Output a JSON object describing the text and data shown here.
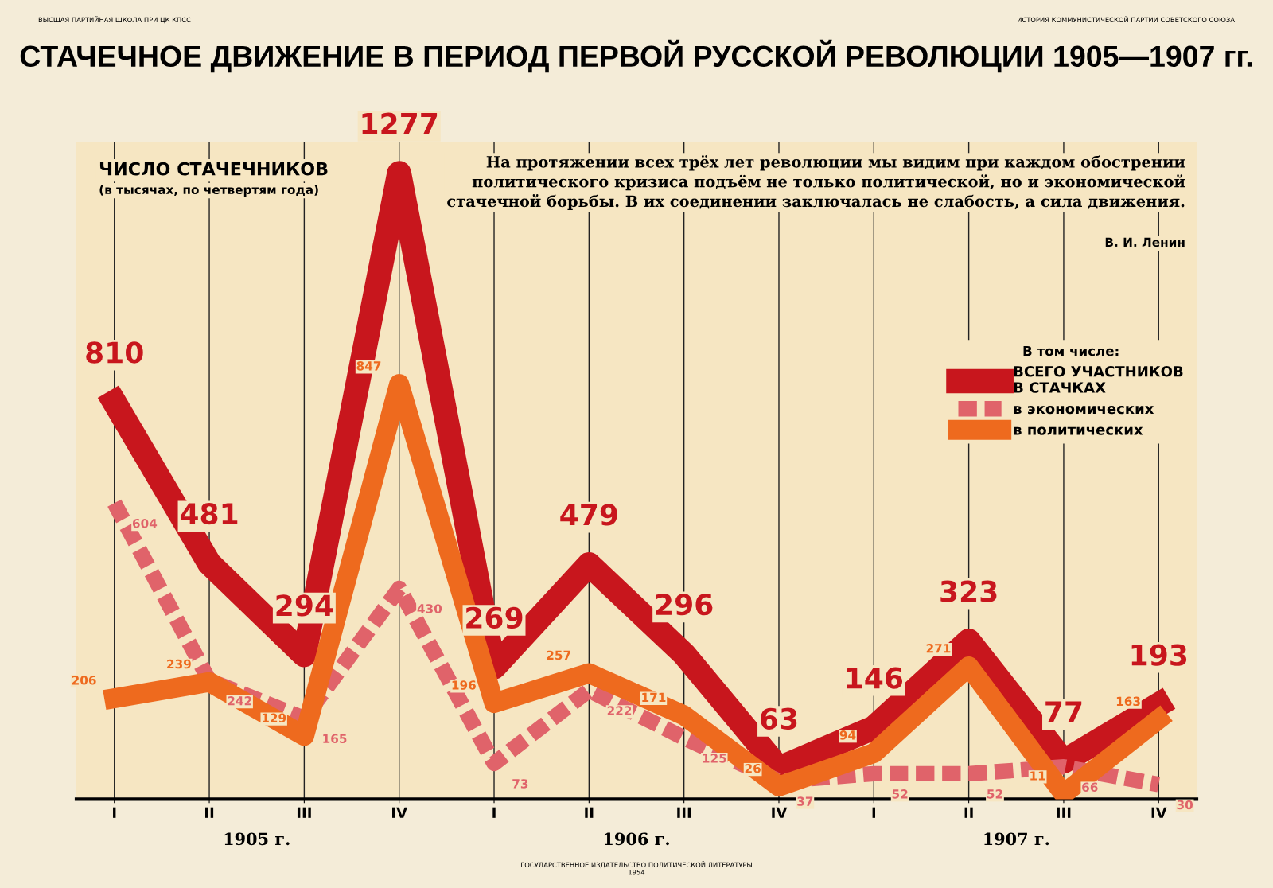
{
  "chart_data": {
    "type": "line",
    "title": "СТАЧЕЧНОЕ ДВИЖЕНИЕ В ПЕРИОД ПЕРВОЙ РУССКОЙ РЕВОЛЮЦИИ 1905—1907 гг.",
    "ylabel": "ЧИСЛО СТАЧЕЧНИКОВ",
    "subtitle": "(в тысячах, по четвертям года)",
    "categories": [
      "I",
      "II",
      "III",
      "IV",
      "I",
      "II",
      "III",
      "IV",
      "I",
      "II",
      "III",
      "IV"
    ],
    "series": [
      {
        "name": "ВСЕГО УЧАСТНИКОВ\nВ СТАЧКАХ",
        "color": "#c8161d",
        "line_style": "solid",
        "values": [
          810,
          481,
          294,
          1277,
          269,
          479,
          296,
          63,
          146,
          323,
          77,
          193
        ]
      },
      {
        "name": "в экономических",
        "color": "#e0636a",
        "line_style": "dashed",
        "values": [
          604,
          242,
          165,
          430,
          73,
          222,
          125,
          37,
          52,
          52,
          66,
          30
        ]
      },
      {
        "name": "в политических",
        "color": "#ee6a1e",
        "line_style": "solid",
        "values": [
          206,
          239,
          129,
          847,
          196,
          257,
          171,
          26,
          94,
          271,
          11,
          163
        ]
      }
    ],
    "data_labels": true,
    "legend": "right",
    "legend_title": "В том числе:",
    "grid": "x",
    "marker": "none",
    "annotations": [
      "1905 г.",
      "1906 г.",
      "1907 г.",
      "На протяжении всех трёх лет революции мы видим при каждом обострении\nполитического кризиса подъём не только политической, но и экономической\nстачечной борьбы. В их соединении заключалась не слабость, а сила движения.",
      "В. И. Ленин",
      "ВЫСШАЯ ПАРТИЙНАЯ ШКОЛА ПРИ ЦК КПСС",
      "ИСТОРИЯ КОММУНИСТИЧЕСКОЙ ПАРТИИ СОВЕТСКОГО СОЮЗА",
      "ГОСУДАРСТВЕННОЕ ИЗДАТЕЛЬСТВО ПОЛИТИЧЕСКОЙ ЛИТЕРАТУРЫ\n1954"
    ]
  }
}
